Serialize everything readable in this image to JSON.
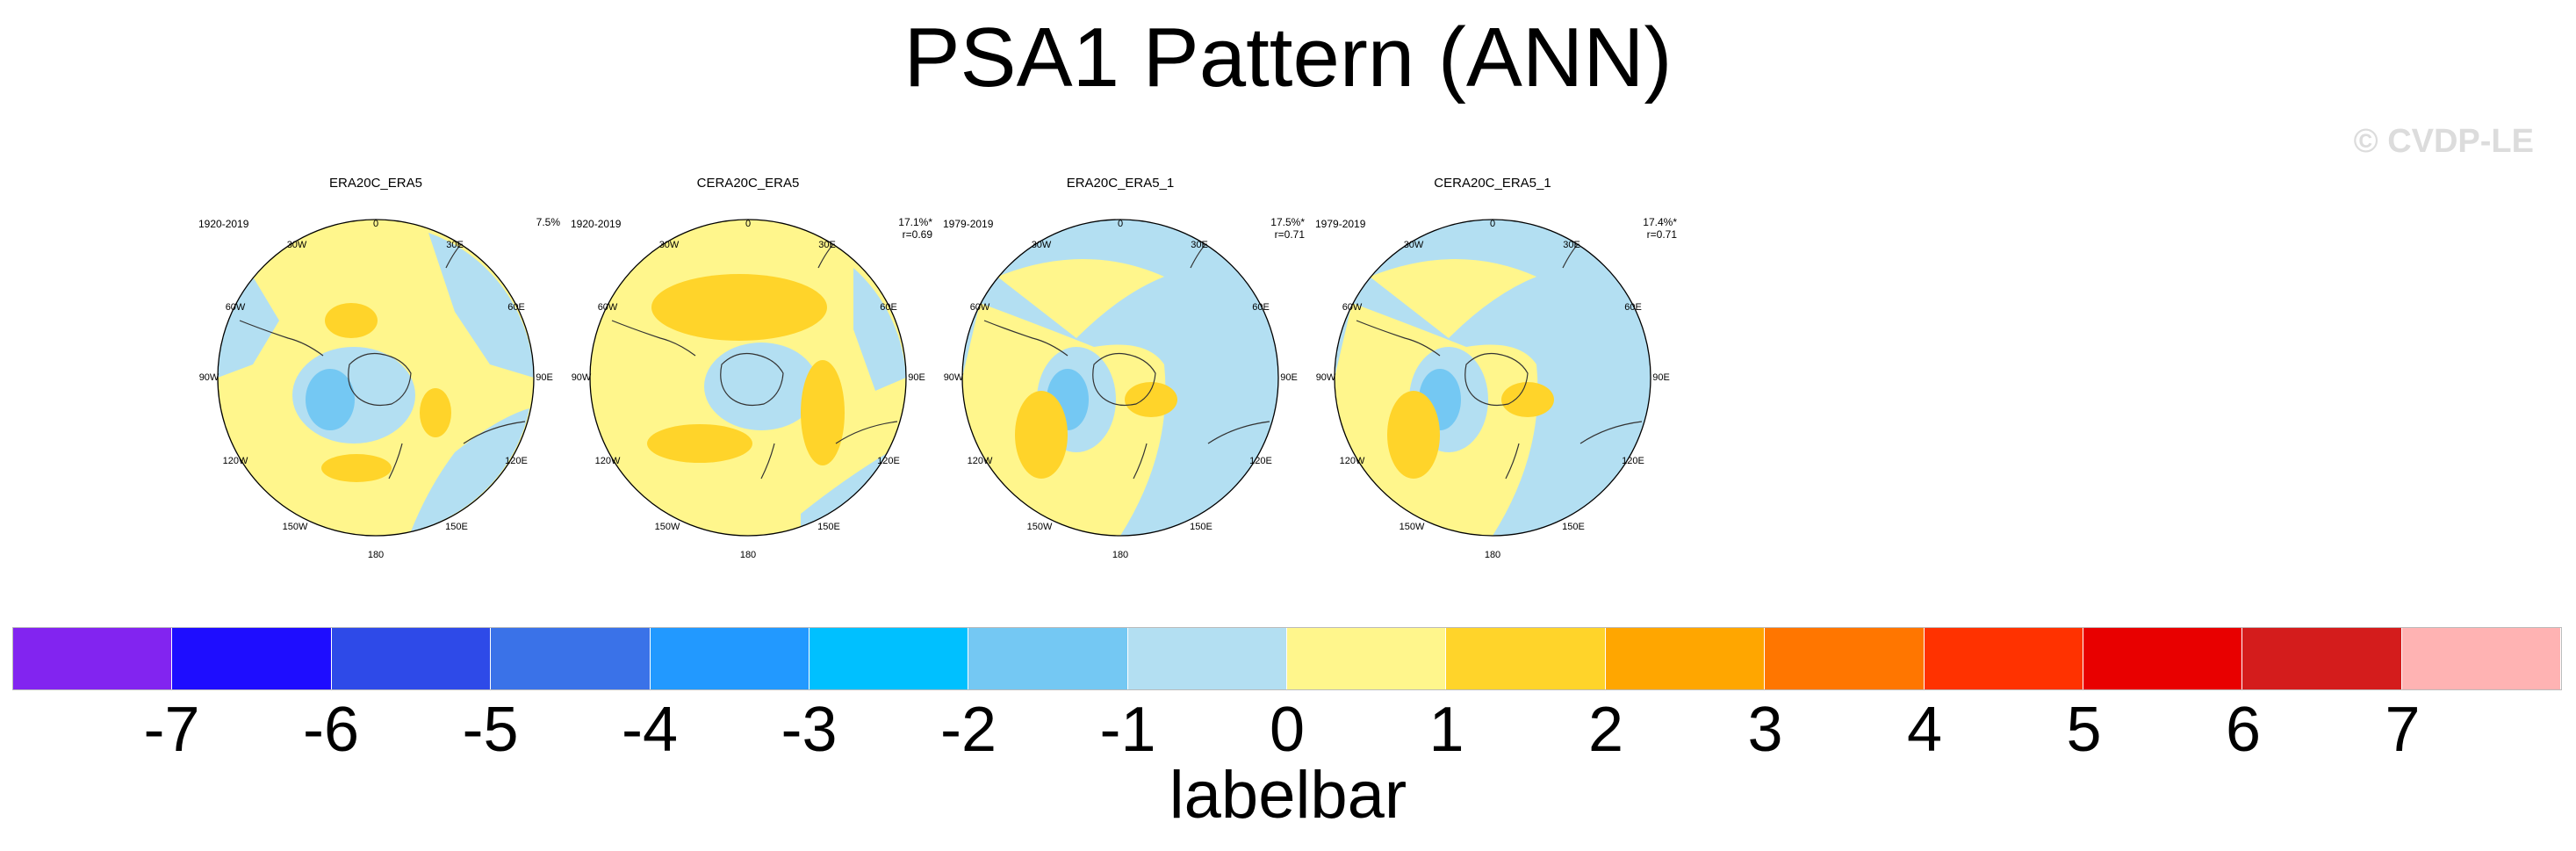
{
  "title": "PSA1 Pattern (ANN)",
  "watermark": "© CVDP-LE",
  "panels": [
    {
      "title": "ERA20C_ERA5",
      "period": "1920-2019",
      "pct": "7.5%",
      "r": ""
    },
    {
      "title": "CERA20C_ERA5",
      "period": "1920-2019",
      "pct": "17.1%*",
      "r": "r=0.69"
    },
    {
      "title": "ERA20C_ERA5_1",
      "period": "1979-2019",
      "pct": "17.5%*",
      "r": "r=0.71"
    },
    {
      "title": "CERA20C_ERA5_1",
      "period": "1979-2019",
      "pct": "17.4%*",
      "r": "r=0.71"
    }
  ],
  "lon_labels": {
    "l0": "0",
    "l30e": "30E",
    "l60e": "60E",
    "l90e": "90E",
    "l120e": "120E",
    "l150e": "150E",
    "l180": "180",
    "l150w": "150W",
    "l120w": "120W",
    "l90w": "90W",
    "l60w": "60W",
    "l30w": "30W"
  },
  "labelbar": {
    "title": "labelbar",
    "colors": [
      "#8224f0",
      "#1e0dff",
      "#2e4ae8",
      "#3a72e8",
      "#2299ff",
      "#00c0ff",
      "#74c8f3",
      "#b3dff2",
      "#fff68c",
      "#ffd42a",
      "#ffa600",
      "#ff7600",
      "#ff3200",
      "#e80000",
      "#d41c1c",
      "#ffb3b3"
    ],
    "ticks": [
      "-7",
      "-6",
      "-5",
      "-4",
      "-3",
      "-2",
      "-1",
      "0",
      "1",
      "2",
      "3",
      "4",
      "5",
      "6",
      "7"
    ]
  },
  "map_colors": {
    "negative_weak": "#b3dff2",
    "negative_mid": "#74c8f3",
    "positive_weak": "#fff68c",
    "positive_mid": "#ffd42a"
  }
}
